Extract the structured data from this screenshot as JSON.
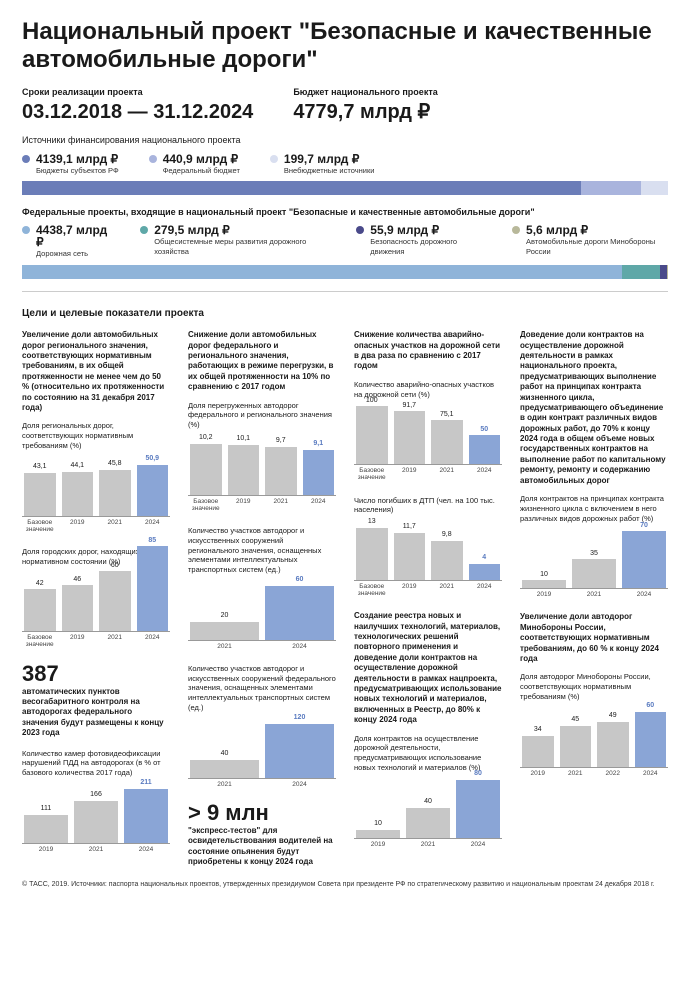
{
  "title": "Национальный проект \"Безопасные и качественные автомобильные дороги\"",
  "period": {
    "label": "Сроки реализации проекта",
    "value": "03.12.2018 — 31.12.2024"
  },
  "budget": {
    "label": "Бюджет национального проекта",
    "value": "4779,7 млрд ₽"
  },
  "sources": {
    "label": "Источники финансирования национального проекта",
    "items": [
      {
        "value": "4139,1 млрд ₽",
        "sub": "Бюджеты субъектов РФ",
        "color": "#6b7db8"
      },
      {
        "value": "440,9 млрд ₽",
        "sub": "Федеральный бюджет",
        "color": "#a9b4dd"
      },
      {
        "value": "199,7 млрд ₽",
        "sub": "Внебюджетные источники",
        "color": "#d9dff0"
      }
    ],
    "bar": [
      {
        "color": "#6b7db8",
        "pct": 86.6
      },
      {
        "color": "#a9b4dd",
        "pct": 9.2
      },
      {
        "color": "#d9dff0",
        "pct": 4.2
      }
    ]
  },
  "federal": {
    "label": "Федеральные проекты, входящие в национальный проект \"Безопасные и качественные автомобильные дороги\"",
    "items": [
      {
        "value": "4438,7 млрд ₽",
        "sub": "Дорожная сеть",
        "color": "#8fb4d9"
      },
      {
        "value": "279,5 млрд ₽",
        "sub": "Общесистемные меры развития дорожного хозяйства",
        "color": "#5fa8a8"
      },
      {
        "value": "55,9 млрд ₽",
        "sub": "Безопасность дорожного движения",
        "color": "#4a4a8a"
      },
      {
        "value": "5,6 млрд ₽",
        "sub": "Автомобильные дороги Минобороны России",
        "color": "#b8b89a"
      }
    ],
    "bar": [
      {
        "color": "#8fb4d9",
        "pct": 92.9
      },
      {
        "color": "#5fa8a8",
        "pct": 5.8
      },
      {
        "color": "#4a4a8a",
        "pct": 1.2
      },
      {
        "color": "#b8b89a",
        "pct": 0.1
      }
    ]
  },
  "goals_label": "Цели и целевые показатели проекта",
  "colors": {
    "bar_gray": "#c7c7c7",
    "bar_blue": "#8aa5d6",
    "bar_blue_dark": "#6b7db8"
  },
  "col1": {
    "p1": "Увеличение доли автомобильных дорог регионального значения, соответствующих нормативным требованиям, в их общей протяженности не менее чем до 50 % (относительно их протяженности по состоянию на 31 декабря 2017 года)",
    "c1": {
      "title": "Доля региональных дорог, соответствующих нормативным требованиям (%)",
      "labels": [
        "Базовое значение",
        "2019",
        "2021",
        "2024"
      ],
      "values": [
        "43,1",
        "44,1",
        "45,8",
        "50,9"
      ],
      "heights": [
        43,
        44,
        46,
        51
      ],
      "highlight_last": true
    },
    "c2": {
      "title": "Доля городских дорог, находящихся в нормативном состоянии (%)",
      "labels": [
        "Базовое значение",
        "2019",
        "2021",
        "2024"
      ],
      "values": [
        "42",
        "46",
        "60",
        "85"
      ],
      "heights": [
        42,
        46,
        60,
        85
      ],
      "highlight_last": true
    },
    "callout_num": "387",
    "callout_text": "автоматических пунктов весогабаритного контроля на автодорогах федерального значения будут размещены к концу 2023 года",
    "c3": {
      "title": "Количество камер фотовидеофиксации нарушений ПДД на автодорогах (в % от базового количества 2017 года)",
      "labels": [
        "2019",
        "2021",
        "2024"
      ],
      "values": [
        "111",
        "166",
        "211"
      ],
      "heights": [
        28,
        42,
        54
      ],
      "highlight_last": true
    }
  },
  "col2": {
    "p1": "Снижение доли автомобильных дорог федерального и регионального значения, работающих в режиме перегрузки, в их общей протяженности на 10% по сравнению с 2017 годом",
    "c1": {
      "title": "Доля перегруженных автодорог федерального и регионального значения (%)",
      "labels": [
        "Базовое значение",
        "2019",
        "2021",
        "2024"
      ],
      "values": [
        "10,2",
        "10,1",
        "9,7",
        "9,1"
      ],
      "heights": [
        51,
        50,
        48,
        45
      ],
      "highlight_last": true
    },
    "c2": {
      "title": "Количество участков автодорог и искусственных сооружений регионального значения, оснащенных элементами интеллектуальных транспортных систем (ед.)",
      "labels": [
        "2021",
        "2024"
      ],
      "values": [
        "20",
        "60"
      ],
      "heights": [
        18,
        54
      ],
      "gap": true,
      "highlight_last": true
    },
    "c3": {
      "title": "Количество участков автодорог и искусственных сооружений федерального значения, оснащенных элементами интеллектуальных транспортных систем (ед.)",
      "labels": [
        "2021",
        "2024"
      ],
      "values": [
        "40",
        "120"
      ],
      "heights": [
        18,
        54
      ],
      "gap": true,
      "highlight_last": true
    },
    "callout_num": "> 9 млн",
    "callout_text": "\"экспресс-тестов\" для освидетельствования водителей на состояние опьянения будут приобретены к концу 2024 года"
  },
  "col3": {
    "p1": "Снижение количества аварийно-опасных участков на дорожной сети в два раза по сравнению с 2017 годом",
    "c1": {
      "title": "Количество аварийно-опасных участков на дорожной сети (%)",
      "labels": [
        "Базовое значение",
        "2019",
        "2021",
        "2024"
      ],
      "values": [
        "100",
        "91,7",
        "75,1",
        "50"
      ],
      "heights": [
        58,
        53,
        44,
        29
      ],
      "highlight_last": true
    },
    "c2": {
      "title": "Число погибших в ДТП (чел. на 100 тыс. населения)",
      "labels": [
        "Базовое значение",
        "2019",
        "2021",
        "2024"
      ],
      "values": [
        "13",
        "11,7",
        "9,8",
        "4"
      ],
      "heights": [
        52,
        47,
        39,
        16
      ],
      "highlight_last": true
    },
    "p2": "Создание реестра новых и наилучших технологий, материалов, технологических решений повторного применения и доведение доли контрактов на осуществление дорожной деятельности в рамках нацпроекта, предусматривающих использование новых технологий и материалов, включенных в Реестр, до 80% к концу 2024 года",
    "c3": {
      "title": "Доля контрактов на осуществление дорожной деятельности, предусматривающих использование новых технологий и материалов (%)",
      "labels": [
        "2019",
        "2021",
        "2024"
      ],
      "values": [
        "10",
        "40",
        "80"
      ],
      "heights": [
        8,
        30,
        58
      ],
      "highlight_last": true
    }
  },
  "col4": {
    "p1": "Доведение доли контрактов на осуществление дорожной деятельности в рамках национального проекта, предусматривающих выполнение работ на принципах контракта жизненного цикла, предусматривающего объединение в один контракт различных видов дорожных работ, до 70% к концу 2024 года в общем объеме новых государственных контрактов на выполнение работ по капитальному ремонту, ремонту и содержанию автомобильных дорог",
    "c1": {
      "title": "Доля контрактов на принципах контракта жизненного цикла с включением в него различных видов дорожных работ (%)",
      "labels": [
        "2019",
        "2021",
        "2024"
      ],
      "values": [
        "10",
        "35",
        "70"
      ],
      "heights": [
        8,
        29,
        57
      ],
      "highlight_last": true
    },
    "p2": "Увеличение доли автодорог Минобороны России, соответствующих нормативным требованиям, до 60 % к концу 2024 года",
    "c2": {
      "title": "Доля автодорог Минобороны России, соответствующих нормативным требованиям (%)",
      "labels": [
        "2019",
        "2021",
        "2022",
        "2024"
      ],
      "values": [
        "34",
        "45",
        "49",
        "60"
      ],
      "heights": [
        31,
        41,
        45,
        55
      ],
      "highlight_last": true
    }
  },
  "footer": "© ТАСС, 2019. Источники: паспорта национальных проектов, утвержденных президиумом Совета при президенте РФ по стратегическому развитию и национальным проектам 24 декабря 2018 г."
}
